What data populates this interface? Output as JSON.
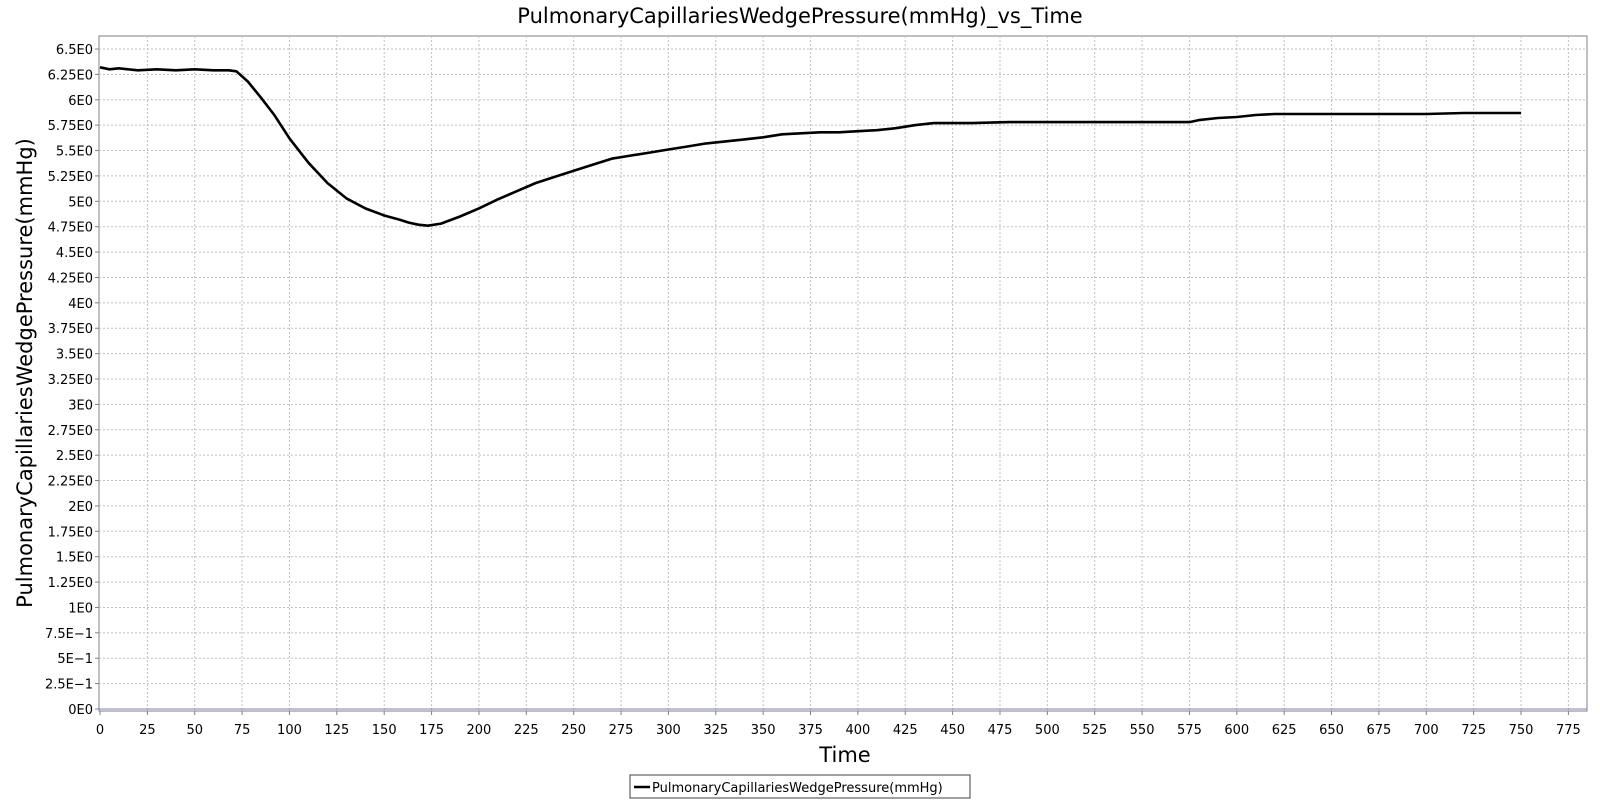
{
  "chart_data": {
    "type": "line",
    "title": "PulmonaryCapillariesWedgePressure(mmHg)_vs_Time",
    "xlabel": "Time",
    "ylabel": "PulmonaryCapillariesWedgePressure(mmHg)",
    "xlim": [
      0,
      787
    ],
    "ylim": [
      0,
      6.5
    ],
    "grid": true,
    "legend_position": "bottom-center",
    "x_ticks": [
      0,
      25,
      50,
      75,
      100,
      125,
      150,
      175,
      200,
      225,
      250,
      275,
      300,
      325,
      350,
      375,
      400,
      425,
      450,
      475,
      500,
      525,
      550,
      575,
      600,
      625,
      650,
      675,
      700,
      725,
      750,
      775
    ],
    "x_tick_labels": [
      "0",
      "25",
      "50",
      "75",
      "100",
      "125",
      "150",
      "175",
      "200",
      "225",
      "250",
      "275",
      "300",
      "325",
      "350",
      "375",
      "400",
      "425",
      "450",
      "475",
      "500",
      "525",
      "550",
      "575",
      "600",
      "625",
      "650",
      "675",
      "700",
      "725",
      "750",
      "775"
    ],
    "y_ticks": [
      0,
      0.25,
      0.5,
      0.75,
      1,
      1.25,
      1.5,
      1.75,
      2,
      2.25,
      2.5,
      2.75,
      3,
      3.25,
      3.5,
      3.75,
      4,
      4.25,
      4.5,
      4.75,
      5,
      5.25,
      5.5,
      5.75,
      6,
      6.25,
      6.5
    ],
    "y_tick_labels": [
      "0E0",
      "2.5E−1",
      "5E−1",
      "7.5E−1",
      "1E0",
      "1.25E0",
      "1.5E0",
      "1.75E0",
      "2E0",
      "2.25E0",
      "2.5E0",
      "2.75E0",
      "3E0",
      "3.25E0",
      "3.5E0",
      "3.75E0",
      "4E0",
      "4.25E0",
      "4.5E0",
      "4.75E0",
      "5E0",
      "5.25E0",
      "5.5E0",
      "5.75E0",
      "6E0",
      "6.25E0",
      "6.5E0"
    ],
    "series": [
      {
        "name": "PulmonaryCapillariesWedgePressure(mmHg)",
        "color": "#000000",
        "x": [
          0,
          5,
          10,
          20,
          30,
          40,
          50,
          60,
          68,
          72,
          78,
          85,
          92,
          100,
          110,
          120,
          130,
          140,
          150,
          158,
          163,
          168,
          173,
          180,
          190,
          200,
          210,
          220,
          230,
          240,
          250,
          260,
          270,
          280,
          290,
          300,
          310,
          320,
          330,
          340,
          350,
          360,
          370,
          380,
          390,
          400,
          410,
          420,
          430,
          440,
          450,
          460,
          480,
          500,
          520,
          540,
          560,
          575,
          580,
          590,
          600,
          610,
          620,
          650,
          680,
          700,
          720,
          750
        ],
        "y": [
          6.32,
          6.3,
          6.31,
          6.29,
          6.3,
          6.29,
          6.3,
          6.29,
          6.29,
          6.28,
          6.18,
          6.02,
          5.85,
          5.62,
          5.38,
          5.18,
          5.03,
          4.93,
          4.86,
          4.82,
          4.79,
          4.77,
          4.76,
          4.78,
          4.85,
          4.93,
          5.02,
          5.1,
          5.18,
          5.24,
          5.3,
          5.36,
          5.42,
          5.45,
          5.48,
          5.51,
          5.54,
          5.57,
          5.59,
          5.61,
          5.63,
          5.66,
          5.67,
          5.68,
          5.68,
          5.69,
          5.7,
          5.72,
          5.75,
          5.77,
          5.77,
          5.77,
          5.78,
          5.78,
          5.78,
          5.78,
          5.78,
          5.78,
          5.8,
          5.82,
          5.83,
          5.85,
          5.86,
          5.86,
          5.86,
          5.86,
          5.87,
          5.87
        ]
      }
    ]
  }
}
